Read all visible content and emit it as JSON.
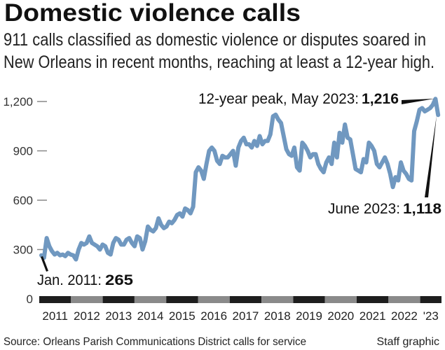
{
  "title": "Domestic violence calls",
  "subtitle_lines": [
    "911 calls classified as domestic violence or disputes soared in",
    "New Orleans in recent months, reaching at least a 12-year high."
  ],
  "source": "Source: Orleans Parish Communications District calls for service",
  "credit": "Staff graphic",
  "chart_data": {
    "type": "line",
    "title": "Domestic violence calls",
    "xlabel": "",
    "ylabel": "",
    "ylim": [
      0,
      1300
    ],
    "yticks": [
      0,
      300,
      600,
      900,
      1200
    ],
    "ytick_labels": [
      "0",
      "300",
      "600",
      "900",
      "1,200"
    ],
    "x_start": "2011-01",
    "x_end": "2023-06",
    "x_frequency": "monthly",
    "year_labels": [
      "2011",
      "2012",
      "2013",
      "2014",
      "2015",
      "2016",
      "2017",
      "2018",
      "2019",
      "2020",
      "2021",
      "2022",
      "'23"
    ],
    "grid": false,
    "line_color": "#7098c0",
    "values": [
      265,
      250,
      370,
      320,
      290,
      270,
      280,
      265,
      270,
      260,
      280,
      270,
      265,
      240,
      300,
      340,
      330,
      340,
      380,
      340,
      330,
      320,
      300,
      330,
      320,
      280,
      270,
      340,
      370,
      360,
      330,
      330,
      360,
      370,
      340,
      320,
      380,
      370,
      300,
      350,
      440,
      420,
      410,
      430,
      490,
      450,
      430,
      440,
      470,
      460,
      480,
      510,
      520,
      500,
      550,
      540,
      520,
      560,
      770,
      800,
      780,
      730,
      820,
      900,
      920,
      900,
      840,
      820,
      870,
      860,
      860,
      880,
      900,
      810,
      920,
      960,
      980,
      940,
      940,
      920,
      960,
      930,
      990,
      940,
      960,
      960,
      1000,
      1110,
      1120,
      1090,
      1070,
      990,
      910,
      880,
      870,
      920,
      800,
      780,
      950,
      930,
      900,
      860,
      880,
      880,
      820,
      790,
      770,
      830,
      860,
      820,
      950,
      860,
      1010,
      950,
      1060,
      980,
      970,
      880,
      790,
      780,
      770,
      850,
      830,
      950,
      930,
      900,
      820,
      800,
      830,
      860,
      820,
      760,
      680,
      740,
      720,
      830,
      780,
      760,
      730,
      720,
      1020,
      1080,
      1150,
      1160,
      1140,
      1150,
      1160,
      1180,
      1216,
      1118
    ],
    "annotations": [
      {
        "label": "12-year peak, May 2023:",
        "value_label": "1,216",
        "x": "2023-05",
        "y": 1216
      },
      {
        "label": "June 2023:",
        "value_label": "1,118",
        "x": "2023-06",
        "y": 1118
      },
      {
        "label": "Jan. 2011:",
        "value_label": "265",
        "x": "2011-01",
        "y": 265
      }
    ]
  }
}
